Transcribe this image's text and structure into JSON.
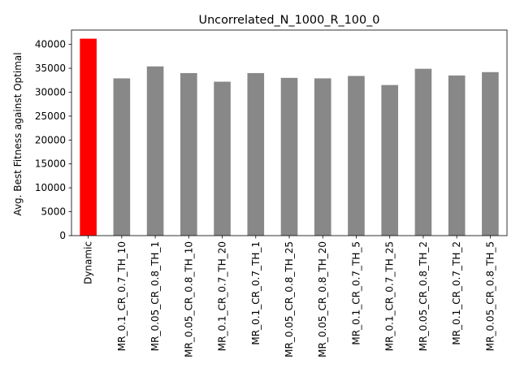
{
  "chart_data": {
    "type": "bar",
    "title": "Uncorrelated_N_1000_R_100_0",
    "xlabel": "",
    "ylabel": "Avg. Best Fitness against Optimal",
    "ylim": [
      0,
      43000
    ],
    "yticks": [
      0,
      5000,
      10000,
      15000,
      20000,
      25000,
      30000,
      35000,
      40000
    ],
    "grid": false,
    "categories": [
      "Dynamic",
      "MR_0.1_CR_0.7_TH_10",
      "MR_0.05_CR_0.8_TH_1",
      "MR_0.05_CR_0.8_TH_10",
      "MR_0.1_CR_0.7_TH_20",
      "MR_0.1_CR_0.7_TH_1",
      "MR_0.05_CR_0.8_TH_25",
      "MR_0.05_CR_0.8_TH_20",
      "MR_0.1_CR_0.7_TH_5",
      "MR_0.1_CR_0.7_TH_25",
      "MR_0.05_CR_0.8_TH_2",
      "MR_0.1_CR_0.7_TH_2",
      "MR_0.05_CR_0.8_TH_5"
    ],
    "values": [
      41200,
      32900,
      35400,
      34000,
      32200,
      34000,
      33000,
      32900,
      33400,
      31500,
      34900,
      33500,
      34200
    ],
    "colors": [
      "#ff0000",
      "#888888",
      "#888888",
      "#888888",
      "#888888",
      "#888888",
      "#888888",
      "#888888",
      "#888888",
      "#888888",
      "#888888",
      "#888888",
      "#888888"
    ]
  }
}
